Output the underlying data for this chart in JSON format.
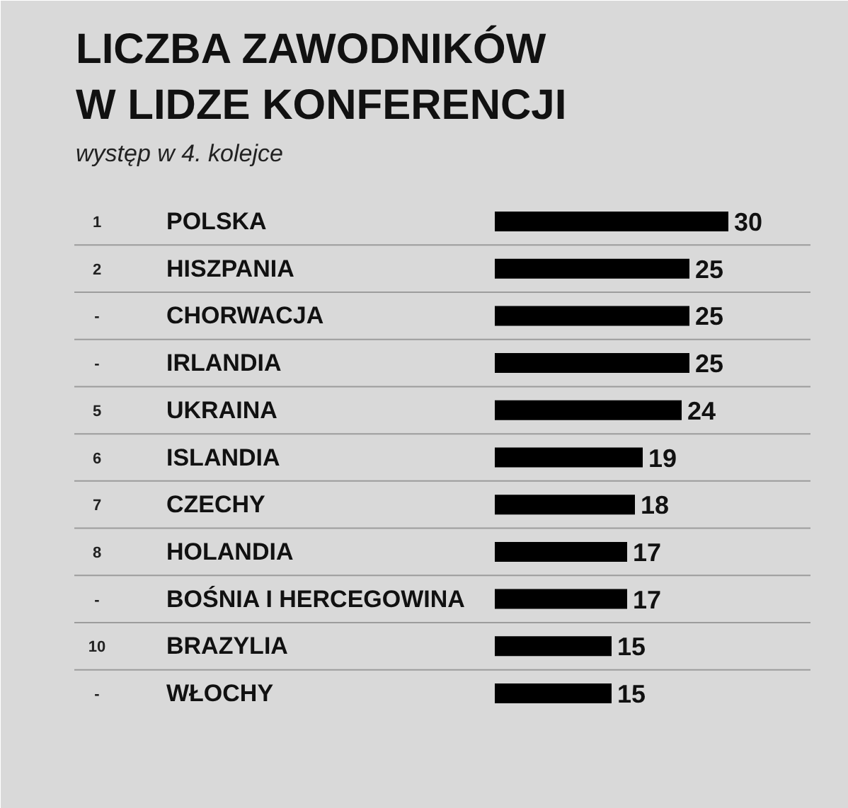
{
  "chart_data": {
    "type": "bar",
    "orientation": "horizontal",
    "title": "LICZBA ZAWODNIKÓW\nW LIDZE KONFERENCJI",
    "subtitle": "występ w 4. kolejce",
    "categories": [
      "POLSKA",
      "HISZPANIA",
      "CHORWACJA",
      "IRLANDIA",
      "UKRAINA",
      "ISLANDIA",
      "CZECHY",
      "HOLANDIA",
      "BOŚNIA I HERCEGOWINA",
      "BRAZYLIA",
      "WŁOCHY"
    ],
    "values": [
      30,
      25,
      25,
      25,
      24,
      19,
      18,
      17,
      17,
      15,
      15
    ],
    "color": "#000000",
    "data_labels": true,
    "grid": "y",
    "annotations": [
      "1",
      "2",
      "-",
      "-",
      "5",
      "6",
      "7",
      "8",
      "-",
      "10",
      "-"
    ]
  }
}
